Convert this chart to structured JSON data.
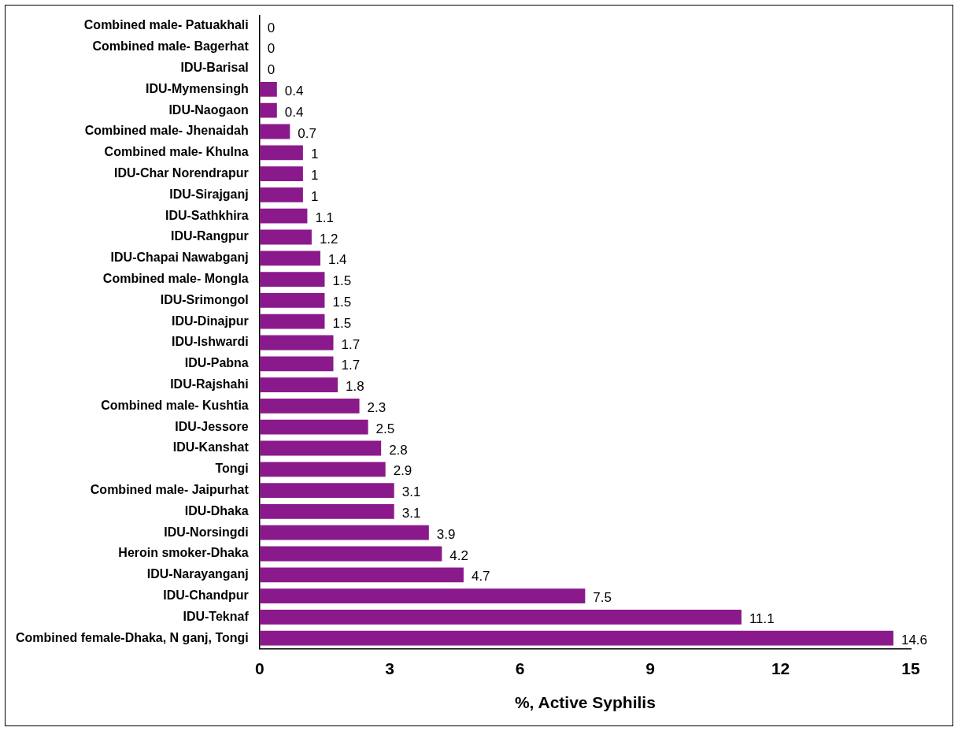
{
  "chart_data": {
    "type": "bar",
    "orientation": "horizontal",
    "xlabel": "%, Active Syphilis",
    "categories": [
      "Combined male- Patuakhali",
      "Combined male- Bagerhat",
      "IDU-Barisal",
      "IDU-Mymensingh",
      "IDU-Naogaon",
      "Combined male- Jhenaidah",
      "Combined male- Khulna",
      "IDU-Char Norendrapur",
      "IDU-Sirajganj",
      "IDU-Sathkhira",
      "IDU-Rangpur",
      "IDU-Chapai Nawabganj",
      "Combined male- Mongla",
      "IDU-Srimongol",
      "IDU-Dinajpur",
      "IDU-Ishwardi",
      "IDU-Pabna",
      "IDU-Rajshahi",
      "Combined male- Kushtia",
      "IDU-Jessore",
      "IDU-Kanshat",
      "Tongi",
      "Combined male- Jaipurhat",
      "IDU-Dhaka",
      "IDU-Norsingdi",
      "Heroin smoker-Dhaka",
      "IDU-Narayanganj",
      "IDU-Chandpur",
      "IDU-Teknaf",
      "Combined female-Dhaka, N ganj, Tongi"
    ],
    "values": [
      0,
      0,
      0,
      0.4,
      0.4,
      0.7,
      1,
      1,
      1,
      1.1,
      1.2,
      1.4,
      1.5,
      1.5,
      1.5,
      1.7,
      1.7,
      1.8,
      2.3,
      2.5,
      2.8,
      2.9,
      3.1,
      3.1,
      3.9,
      4.2,
      4.7,
      7.5,
      11.1,
      14.6
    ],
    "color": "#8a1a8c",
    "xlim": [
      0,
      15
    ],
    "xticks": [
      0,
      3,
      6,
      9,
      12,
      15
    ],
    "grid": false,
    "legend": false,
    "data_labels": true
  }
}
